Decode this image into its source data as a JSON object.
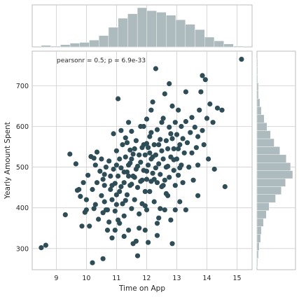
{
  "chart_data": {
    "type": "scatter",
    "xlabel": "Time on App",
    "ylabel": "Yearly Amount Spent",
    "xlim": [
      8.2,
      15.5
    ],
    "ylim": [
      248,
      785
    ],
    "xticks": [
      9,
      10,
      11,
      12,
      13,
      14,
      15
    ],
    "yticks": [
      300,
      400,
      500,
      600,
      700
    ],
    "grid": true,
    "annotation": "pearsonr = 0.5; p = 6.9e-33",
    "point_color": "#2f4d57",
    "hist_color": "#adbabe",
    "points": [
      [
        8.5,
        302
      ],
      [
        8.65,
        308
      ],
      [
        9.3,
        383
      ],
      [
        9.45,
        532
      ],
      [
        9.65,
        508
      ],
      [
        9.75,
        445
      ],
      [
        9.8,
        428
      ],
      [
        9.85,
        355
      ],
      [
        9.9,
        462
      ],
      [
        9.95,
        389
      ],
      [
        10.0,
        395
      ],
      [
        10.0,
        420
      ],
      [
        10.05,
        480
      ],
      [
        10.1,
        355
      ],
      [
        10.15,
        526
      ],
      [
        10.2,
        445
      ],
      [
        10.25,
        398
      ],
      [
        10.3,
        505
      ],
      [
        10.3,
        408
      ],
      [
        10.35,
        462
      ],
      [
        10.35,
        537
      ],
      [
        10.4,
        372
      ],
      [
        10.45,
        490
      ],
      [
        10.5,
        430
      ],
      [
        10.5,
        520
      ],
      [
        10.55,
        388
      ],
      [
        10.55,
        470
      ],
      [
        10.6,
        415
      ],
      [
        10.6,
        455
      ],
      [
        10.65,
        500
      ],
      [
        10.7,
        345
      ],
      [
        10.7,
        395
      ],
      [
        10.75,
        515
      ],
      [
        10.8,
        445
      ],
      [
        10.8,
        478
      ],
      [
        10.85,
        326
      ],
      [
        10.85,
        420
      ],
      [
        10.9,
        495
      ],
      [
        10.9,
        582
      ],
      [
        10.95,
        392
      ],
      [
        10.95,
        460
      ],
      [
        11.0,
        540
      ],
      [
        11.0,
        505
      ],
      [
        11.0,
        432
      ],
      [
        11.05,
        370
      ],
      [
        11.05,
        478
      ],
      [
        11.1,
        520
      ],
      [
        11.1,
        440
      ],
      [
        11.15,
        590
      ],
      [
        11.15,
        498
      ],
      [
        11.2,
        410
      ],
      [
        11.2,
        555
      ],
      [
        11.25,
        462
      ],
      [
        11.25,
        380
      ],
      [
        11.3,
        525
      ],
      [
        11.3,
        572
      ],
      [
        11.35,
        488
      ],
      [
        11.35,
        432
      ],
      [
        11.4,
        345
      ],
      [
        11.4,
        505
      ],
      [
        11.45,
        542
      ],
      [
        11.45,
        455
      ],
      [
        11.5,
        398
      ],
      [
        11.5,
        588
      ],
      [
        11.5,
        520
      ],
      [
        11.55,
        478
      ],
      [
        11.55,
        312
      ],
      [
        11.6,
        545
      ],
      [
        11.6,
        420
      ],
      [
        11.65,
        495
      ],
      [
        11.65,
        565
      ],
      [
        11.7,
        450
      ],
      [
        11.7,
        282
      ],
      [
        11.75,
        530
      ],
      [
        11.75,
        385
      ],
      [
        11.8,
        512
      ],
      [
        11.8,
        600
      ],
      [
        11.85,
        468
      ],
      [
        11.85,
        410
      ],
      [
        11.9,
        555
      ],
      [
        11.9,
        492
      ],
      [
        11.95,
        530
      ],
      [
        11.95,
        345
      ],
      [
        12.0,
        618
      ],
      [
        12.0,
        470
      ],
      [
        12.0,
        395
      ],
      [
        12.05,
        548
      ],
      [
        12.05,
        505
      ],
      [
        12.1,
        575
      ],
      [
        12.1,
        440
      ],
      [
        12.15,
        640
      ],
      [
        12.15,
        520
      ],
      [
        12.2,
        660
      ],
      [
        12.2,
        485
      ],
      [
        12.25,
        555
      ],
      [
        12.25,
        415
      ],
      [
        12.3,
        742
      ],
      [
        12.3,
        530
      ],
      [
        12.35,
        592
      ],
      [
        12.35,
        462
      ],
      [
        12.4,
        508
      ],
      [
        12.4,
        375
      ],
      [
        12.45,
        568
      ],
      [
        12.45,
        482
      ],
      [
        12.5,
        540
      ],
      [
        12.5,
        610
      ],
      [
        12.55,
        455
      ],
      [
        12.55,
        520
      ],
      [
        12.6,
        680
      ],
      [
        12.6,
        395
      ],
      [
        12.65,
        565
      ],
      [
        12.65,
        500
      ],
      [
        12.7,
        545
      ],
      [
        12.7,
        430
      ],
      [
        12.75,
        598
      ],
      [
        12.75,
        475
      ],
      [
        12.8,
        525
      ],
      [
        12.8,
        370
      ],
      [
        12.85,
        570
      ],
      [
        12.85,
        650
      ],
      [
        12.9,
        492
      ],
      [
        12.9,
        545
      ],
      [
        12.95,
        610
      ],
      [
        12.95,
        455
      ],
      [
        13.0,
        580
      ],
      [
        13.0,
        520
      ],
      [
        13.05,
        480
      ],
      [
        13.05,
        640
      ],
      [
        13.1,
        555
      ],
      [
        13.1,
        415
      ],
      [
        13.15,
        600
      ],
      [
        13.15,
        505
      ],
      [
        13.2,
        570
      ],
      [
        13.2,
        462
      ],
      [
        13.25,
        535
      ],
      [
        13.3,
        612
      ],
      [
        13.3,
        395
      ],
      [
        13.35,
        560
      ],
      [
        13.4,
        500
      ],
      [
        13.45,
        585
      ],
      [
        13.5,
        622
      ],
      [
        13.5,
        535
      ],
      [
        13.55,
        468
      ],
      [
        13.6,
        598
      ],
      [
        13.65,
        548
      ],
      [
        13.7,
        575
      ],
      [
        13.7,
        505
      ],
      [
        13.75,
        640
      ],
      [
        13.8,
        685
      ],
      [
        13.85,
        590
      ],
      [
        13.85,
        725
      ],
      [
        13.9,
        555
      ],
      [
        13.95,
        715
      ],
      [
        14.0,
        620
      ],
      [
        14.05,
        520
      ],
      [
        14.1,
        655
      ],
      [
        14.2,
        610
      ],
      [
        14.25,
        495
      ],
      [
        14.35,
        645
      ],
      [
        14.6,
        452
      ],
      [
        15.15,
        765
      ],
      [
        10.65,
        395
      ],
      [
        11.05,
        668
      ],
      [
        12.05,
        315
      ],
      [
        12.75,
        705
      ],
      [
        10.55,
        275
      ],
      [
        9.7,
        443
      ],
      [
        10.25,
        522
      ],
      [
        11.25,
        330
      ],
      [
        11.65,
        318
      ],
      [
        12.35,
        332
      ],
      [
        12.85,
        312
      ],
      [
        10.6,
        482
      ],
      [
        11.4,
        610
      ],
      [
        12.95,
        395
      ],
      [
        13.3,
        685
      ],
      [
        13.7,
        430
      ],
      [
        14.5,
        640
      ],
      [
        10.95,
        345
      ],
      [
        12.55,
        620
      ],
      [
        11.85,
        548
      ],
      [
        12.15,
        585
      ],
      [
        11.45,
        510
      ],
      [
        12.25,
        470
      ],
      [
        11.95,
        440
      ],
      [
        12.65,
        435
      ],
      [
        11.75,
        350
      ],
      [
        12.45,
        398
      ],
      [
        11.15,
        452
      ],
      [
        12.0,
        490
      ],
      [
        12.4,
        555
      ],
      [
        11.6,
        475
      ],
      [
        12.7,
        502
      ],
      [
        11.3,
        418
      ],
      [
        13.05,
        545
      ],
      [
        11.9,
        600
      ],
      [
        12.2,
        525
      ],
      [
        11.5,
        458
      ],
      [
        12.6,
        468
      ],
      [
        11.0,
        408
      ],
      [
        12.1,
        535
      ],
      [
        11.8,
        465
      ],
      [
        12.3,
        498
      ],
      [
        11.55,
        532
      ],
      [
        12.9,
        518
      ],
      [
        11.35,
        560
      ],
      [
        12.5,
        452
      ],
      [
        11.7,
        502
      ],
      [
        12.0,
        558
      ],
      [
        11.25,
        488
      ],
      [
        13.1,
        498
      ],
      [
        10.85,
        455
      ],
      [
        12.8,
        582
      ],
      [
        11.95,
        405
      ],
      [
        12.15,
        465
      ],
      [
        11.4,
        478
      ],
      [
        10.2,
        265
      ],
      [
        11.1,
        362
      ],
      [
        12.35,
        362
      ],
      [
        10.75,
        365
      ]
    ],
    "hist_x_counts": [
      2,
      1,
      3,
      5,
      6,
      9,
      15,
      26,
      38,
      44,
      52,
      48,
      46,
      42,
      36,
      30,
      23,
      13,
      8,
      4,
      1
    ],
    "hist_x_range": [
      8.5,
      15.2
    ],
    "hist_y_counts": [
      1,
      2,
      3,
      5,
      6,
      9,
      13,
      17,
      26,
      34,
      40,
      50,
      47,
      41,
      32,
      24,
      19,
      14,
      10,
      6,
      4,
      2,
      2,
      1,
      1,
      1
    ],
    "hist_y_range": [
      256,
      766
    ]
  }
}
